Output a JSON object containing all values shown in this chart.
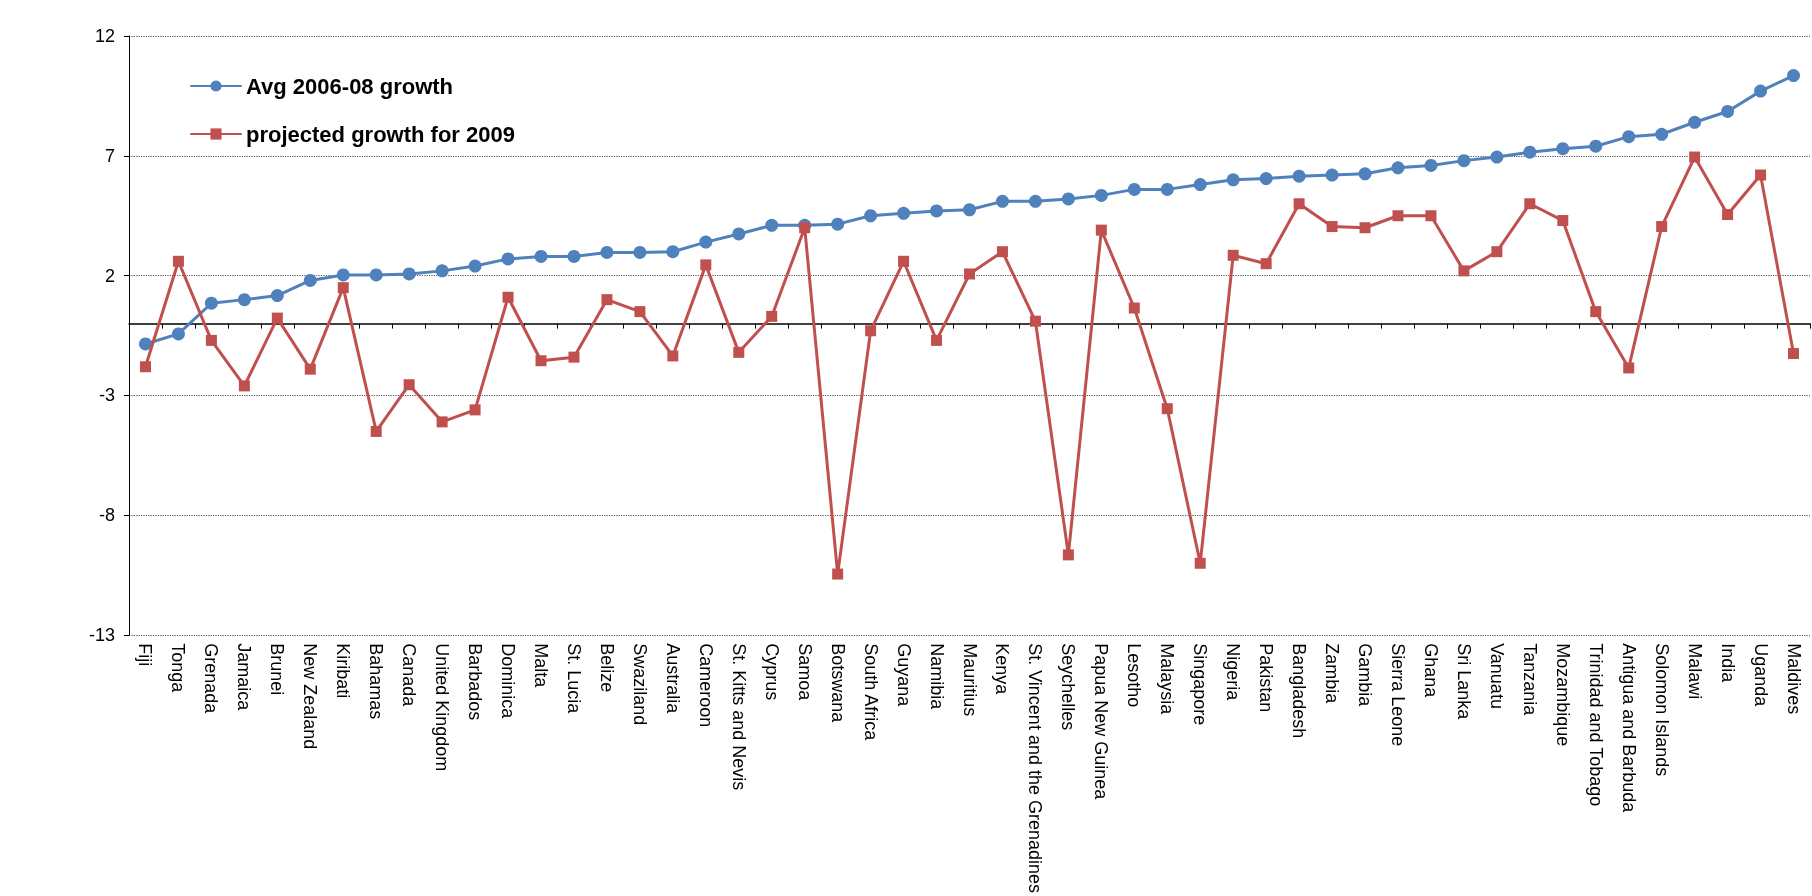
{
  "chart_data": {
    "type": "line",
    "categories": [
      "Fiji",
      "Tonga",
      "Grenada",
      "Jamaica",
      "Brunei",
      "New Zealand",
      "Kiribati",
      "Bahamas",
      "Canada",
      "United Kingdom",
      "Barbados",
      "Dominica",
      "Malta",
      "St. Lucia",
      "Belize",
      "Swaziland",
      "Australia",
      "Cameroon",
      "St. Kitts and Nevis",
      "Cyprus",
      "Samoa",
      "Botswana",
      "South Africa",
      "Guyana",
      "Namibia",
      "Mauritius",
      "Kenya",
      "St. Vincent and the Grenadines",
      "Seychelles",
      "Papua New Guinea",
      "Lesotho",
      "Malaysia",
      "Singapore",
      "Nigeria",
      "Pakistan",
      "Bangladesh",
      "Zambia",
      "Gambia",
      "Sierra Leone",
      "Ghana",
      "Sri Lanka",
      "Vanuatu",
      "Tanzania",
      "Mozambique",
      "Trinidad and Tobago",
      "Antigua and Barbuda",
      "Solomon Islands",
      "Malawi",
      "India",
      "Uganda",
      "Maldives"
    ],
    "series": [
      {
        "name": "Avg 2006-08 growth",
        "color": "#4f81bd",
        "marker": "circle",
        "values": [
          -0.85,
          -0.43,
          0.85,
          1.0,
          1.17,
          1.8,
          2.03,
          2.03,
          2.07,
          2.2,
          2.4,
          2.7,
          2.8,
          2.8,
          2.97,
          2.97,
          3.0,
          3.4,
          3.74,
          4.1,
          4.1,
          4.15,
          4.5,
          4.6,
          4.7,
          4.75,
          5.1,
          5.1,
          5.2,
          5.35,
          5.6,
          5.6,
          5.8,
          6.0,
          6.05,
          6.15,
          6.2,
          6.25,
          6.5,
          6.6,
          6.8,
          6.95,
          7.15,
          7.3,
          7.4,
          7.8,
          7.9,
          8.4,
          8.85,
          9.7,
          10.35
        ]
      },
      {
        "name": "projected growth for 2009",
        "color": "#c0504d",
        "marker": "square",
        "values": [
          -1.8,
          2.6,
          -0.7,
          -2.6,
          0.23,
          -1.9,
          1.5,
          -4.5,
          -2.55,
          -4.1,
          -3.6,
          1.1,
          -1.55,
          -1.4,
          1.0,
          0.5,
          -1.35,
          2.45,
          -1.2,
          0.3,
          4.0,
          -10.45,
          -0.3,
          2.6,
          -0.7,
          2.07,
          3.0,
          0.1,
          -9.65,
          3.9,
          0.65,
          -3.55,
          -10.0,
          2.85,
          2.5,
          5.0,
          4.05,
          4.0,
          4.5,
          4.5,
          2.2,
          3.0,
          5.0,
          4.3,
          0.5,
          -1.85,
          4.05,
          6.95,
          4.55,
          6.2,
          -1.25
        ]
      }
    ],
    "ylim": [
      -13,
      12
    ],
    "yticks": [
      -13,
      -8,
      -3,
      2,
      7,
      12
    ],
    "grid": "y",
    "legend": "top left",
    "line_style": "solid"
  }
}
